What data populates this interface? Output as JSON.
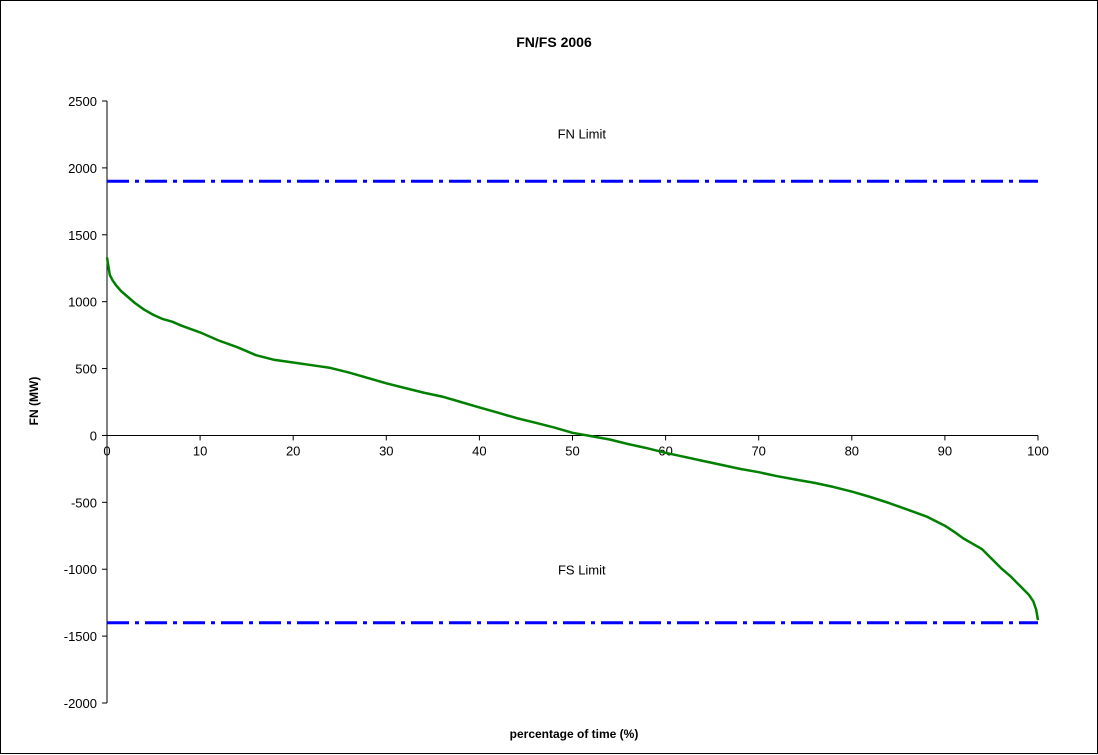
{
  "chart_data": {
    "type": "line",
    "title": "FN/FS 2006",
    "xlabel": "percentage of time (%)",
    "ylabel": "FN (MW)",
    "xlim": [
      0,
      100
    ],
    "ylim": [
      -2000,
      2500
    ],
    "x_ticks": [
      "0",
      "10",
      "20",
      "30",
      "40",
      "50",
      "60",
      "70",
      "80",
      "90",
      "100"
    ],
    "y_ticks": [
      "2500",
      "2000",
      "1500",
      "1000",
      "500",
      "0",
      "-500",
      "-1000",
      "-1500",
      "-2000"
    ],
    "grid": false,
    "series": [
      {
        "color": "#008000",
        "x": [
          0,
          0.3,
          0.6,
          1,
          1.5,
          2,
          3,
          4,
          5,
          6,
          7,
          8,
          10,
          12,
          14,
          16,
          18,
          20,
          22,
          24,
          26,
          28,
          30,
          32,
          34,
          36,
          38,
          40,
          42,
          44,
          46,
          48,
          50,
          52,
          54,
          56,
          58,
          60,
          62,
          64,
          66,
          68,
          70,
          72,
          74,
          76,
          78,
          80,
          82,
          84,
          86,
          88,
          90,
          91,
          92,
          93,
          94,
          95,
          96,
          97,
          98,
          99,
          99.5,
          99.8,
          100
        ],
        "y": [
          1330,
          1200,
          1160,
          1120,
          1080,
          1050,
          990,
          940,
          900,
          870,
          850,
          820,
          770,
          710,
          660,
          600,
          565,
          545,
          525,
          505,
          470,
          430,
          390,
          355,
          320,
          290,
          250,
          210,
          170,
          130,
          95,
          60,
          20,
          -5,
          -30,
          -65,
          -95,
          -130,
          -160,
          -190,
          -220,
          -250,
          -275,
          -305,
          -330,
          -355,
          -385,
          -420,
          -460,
          -505,
          -555,
          -605,
          -675,
          -720,
          -770,
          -810,
          -850,
          -920,
          -990,
          -1050,
          -1120,
          -1190,
          -1240,
          -1300,
          -1380
        ]
      },
      {
        "name": "FN Limit",
        "color": "#0000ff",
        "dashed": true,
        "x": [
          0,
          100
        ],
        "y": [
          1900,
          1900
        ]
      },
      {
        "name": "FS Limit",
        "color": "#0000ff",
        "dashed": true,
        "x": [
          0,
          100
        ],
        "y": [
          -1400,
          -1400
        ]
      }
    ],
    "annotations": [
      {
        "text": "FN Limit",
        "x": 51,
        "y": 2220
      },
      {
        "text": "FS Limit",
        "x": 51,
        "y": -1040
      }
    ]
  }
}
